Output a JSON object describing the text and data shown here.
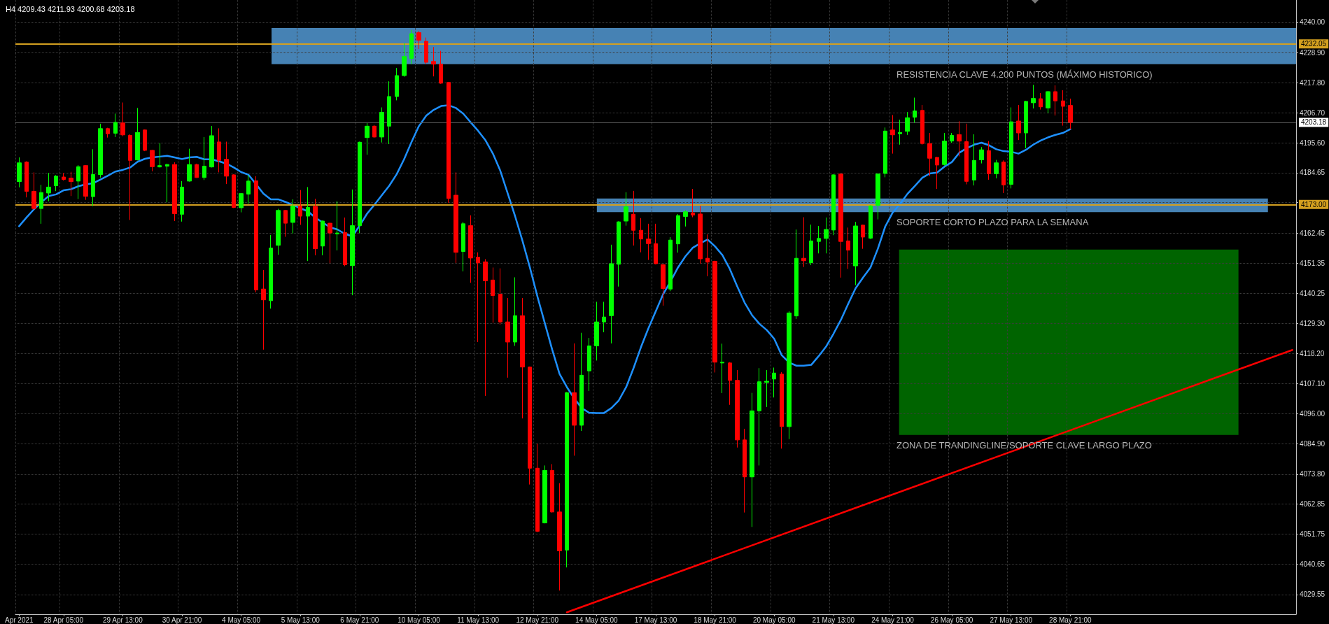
{
  "chart_data": {
    "type": "candlestick",
    "title": "H4 4209.43 4211.93 4200.68 4203.18",
    "categories": [
      "Apr 2021",
      null,
      null,
      null,
      null,
      null,
      "28 Apr 05:00",
      null,
      null,
      null,
      null,
      null,
      null,
      null,
      "29 Apr 13:00",
      null,
      null,
      null,
      null,
      null,
      null,
      null,
      "30 Apr 21:00",
      null,
      null,
      null,
      null,
      null,
      null,
      null,
      "4 May 05:00",
      null,
      null,
      null,
      null,
      null,
      null,
      null,
      "5 May 13:00",
      null,
      null,
      null,
      null,
      null,
      null,
      null,
      "6 May 21:00",
      null,
      null,
      null,
      null,
      null,
      null,
      null,
      "10 May 05:00",
      null,
      null,
      null,
      null,
      null,
      null,
      null,
      "11 May 13:00",
      null,
      null,
      null,
      null,
      null,
      null,
      null,
      "12 May 21:00",
      null,
      null,
      null,
      null,
      null,
      null,
      null,
      "14 May 05:00",
      null,
      null,
      null,
      null,
      null,
      null,
      null,
      "17 May 13:00",
      null,
      null,
      null,
      null,
      null,
      null,
      null,
      "18 May 21:00",
      null,
      null,
      null,
      null,
      null,
      null,
      null,
      "20 May 05:00",
      null,
      null,
      null,
      null,
      null,
      null,
      null,
      "21 May 13:00",
      null,
      null,
      null,
      null,
      null,
      null,
      null,
      "24 May 21:00",
      null,
      null,
      null,
      null,
      null,
      null,
      null,
      "26 May 05:00",
      null,
      null,
      null,
      null,
      null,
      null,
      null,
      "27 May 13:00",
      null,
      null,
      null,
      null,
      null,
      null,
      null,
      "28 May 21:00",
      null,
      null,
      null,
      null,
      null,
      null,
      null,
      null,
      null,
      null,
      null,
      null,
      null,
      null,
      null,
      null,
      null,
      null,
      null,
      null,
      null,
      null,
      null,
      null,
      null,
      null,
      null,
      null,
      null,
      null
    ],
    "ohlc": [
      [
        4181.4,
        4190.3,
        4179.3,
        4188.3
      ],
      [
        4188.6,
        4188.9,
        4175.6,
        4177.8
      ],
      [
        4177.8,
        4184.8,
        4171.0,
        4171.5
      ],
      [
        4171.5,
        4180.2,
        4165.9,
        4177.4
      ],
      [
        4177.2,
        4184.6,
        4174.2,
        4179.4
      ],
      [
        4179.9,
        4183.8,
        4177.9,
        4183.4
      ],
      [
        4183.1,
        4184.6,
        4181.8,
        4182.2
      ],
      [
        4182.7,
        4185.0,
        4176.1,
        4181.4
      ],
      [
        4181.6,
        4187.5,
        4175.0,
        4186.9
      ],
      [
        4187.3,
        4187.5,
        4174.7,
        4176.0
      ],
      [
        4175.9,
        4193.3,
        4172.4,
        4184.0
      ],
      [
        4184.0,
        4202.7,
        4182.9,
        4200.9
      ],
      [
        4200.9,
        4201.2,
        4197.6,
        4199.0
      ],
      [
        4199.2,
        4206.4,
        4197.8,
        4203.2
      ],
      [
        4203.0,
        4210.5,
        4198.1,
        4198.6
      ],
      [
        4198.4,
        4198.8,
        4167.3,
        4189.2
      ],
      [
        4189.4,
        4208.5,
        4189.2,
        4199.5
      ],
      [
        4200.4,
        4200.6,
        4192.6,
        4192.9
      ],
      [
        4192.9,
        4193.1,
        4185.2,
        4186.9
      ],
      [
        4186.8,
        4195.6,
        4186.6,
        4187.3
      ],
      [
        4187.1,
        4188.0,
        4173.8,
        4187.7
      ],
      [
        4187.7,
        4188.5,
        4166.9,
        4169.6
      ],
      [
        4169.4,
        4181.6,
        4166.7,
        4179.4
      ],
      [
        4181.6,
        4193.5,
        4181.4,
        4187.7
      ],
      [
        4187.7,
        4188.0,
        4182.8,
        4182.9
      ],
      [
        4182.9,
        4197.8,
        4182.0,
        4187.1
      ],
      [
        4186.8,
        4201.9,
        4186.6,
        4198.3
      ],
      [
        4196.0,
        4201.0,
        4184.8,
        4189.2
      ],
      [
        4189.6,
        4196.1,
        4180.5,
        4183.4
      ],
      [
        4183.9,
        4184.1,
        4171.7,
        4171.9
      ],
      [
        4171.8,
        4177.2,
        4170.1,
        4177.0
      ],
      [
        4176.8,
        4183.9,
        4173.3,
        4181.6
      ],
      [
        4181.7,
        4183.4,
        4140.7,
        4141.6
      ],
      [
        4141.9,
        4148.9,
        4119.6,
        4137.9
      ],
      [
        4137.6,
        4161.8,
        4134.7,
        4157.0
      ],
      [
        4158.0,
        4171.4,
        4154.5,
        4170.8
      ],
      [
        4170.8,
        4171.0,
        4161.1,
        4166.1
      ],
      [
        4166.4,
        4174.9,
        4162.3,
        4172.4
      ],
      [
        4172.4,
        4178.3,
        4165.5,
        4168.7
      ],
      [
        4168.7,
        4179.4,
        4152.2,
        4171.9
      ],
      [
        4172.3,
        4175.1,
        4154.3,
        4156.7
      ],
      [
        4157.7,
        4167.1,
        4154.3,
        4166.9
      ],
      [
        4166.1,
        4166.3,
        4151.4,
        4162.5
      ],
      [
        4162.2,
        4174.2,
        4156.1,
        4162.5
      ],
      [
        4162.7,
        4168.2,
        4150.3,
        4150.8
      ],
      [
        4150.5,
        4178.5,
        4139.6,
        4165.2
      ],
      [
        4165.2,
        4196.1,
        4162.4,
        4195.9
      ],
      [
        4197.6,
        4202.9,
        4191.3,
        4201.8
      ],
      [
        4201.8,
        4202.2,
        4197.6,
        4197.8
      ],
      [
        4197.8,
        4208.7,
        4195.8,
        4206.9
      ],
      [
        4201.8,
        4218.3,
        4195.2,
        4212.7
      ],
      [
        4212.7,
        4223.2,
        4211.3,
        4220.4
      ],
      [
        4220.4,
        4232.3,
        4220.0,
        4227.4
      ],
      [
        4226.7,
        4237.2,
        4224.6,
        4235.8
      ],
      [
        4236.2,
        4236.8,
        4230.2,
        4233.4
      ],
      [
        4233.0,
        4234.4,
        4224.6,
        4225.3
      ],
      [
        4225.6,
        4230.9,
        4220.1,
        4224.6
      ],
      [
        4224.6,
        4229.5,
        4217.4,
        4217.6
      ],
      [
        4217.9,
        4218.1,
        4173.6,
        4175.2
      ],
      [
        4176.4,
        4184.8,
        4151.5,
        4155.4
      ],
      [
        4155.7,
        4166.6,
        4148.4,
        4165.9
      ],
      [
        4165.2,
        4169.0,
        4144.2,
        4153.3
      ],
      [
        4153.6,
        4155.4,
        4122.4,
        4151.5
      ],
      [
        4151.9,
        4152.9,
        4102.6,
        4144.9
      ],
      [
        4145.2,
        4149.8,
        4129.5,
        4139.5
      ],
      [
        4140.0,
        4149.5,
        4128.8,
        4129.8
      ],
      [
        4129.8,
        4138.6,
        4109.3,
        4122.4
      ],
      [
        4122.4,
        4146.2,
        4121.0,
        4132.1
      ],
      [
        4132.1,
        4138.6,
        4094.3,
        4113.2
      ],
      [
        4113.2,
        4113.4,
        4070.0,
        4076.0
      ],
      [
        4076.0,
        4085.0,
        4052.5,
        4052.8
      ],
      [
        4055.9,
        4077.0,
        4055.7,
        4075.2
      ],
      [
        4075.2,
        4077.5,
        4059.7,
        4059.9
      ],
      [
        4059.9,
        4070.5,
        4031.0,
        4045.6
      ],
      [
        4045.9,
        4104.0,
        4039.5,
        4103.8
      ],
      [
        4103.8,
        4121.9,
        4080.6,
        4091.8
      ],
      [
        4091.8,
        4125.8,
        4089.7,
        4110.2
      ],
      [
        4111.8,
        4123.9,
        4104.4,
        4121.0
      ],
      [
        4121.0,
        4137.2,
        4115.6,
        4129.8
      ],
      [
        4129.8,
        4137.2,
        4126.0,
        4131.6
      ],
      [
        4132.1,
        4158.2,
        4121.9,
        4151.2
      ],
      [
        4151.0,
        4166.8,
        4142.8,
        4166.6
      ],
      [
        4166.9,
        4177.5,
        4165.2,
        4172.2
      ],
      [
        4169.4,
        4178.0,
        4157.9,
        4163.5
      ],
      [
        4163.5,
        4168.0,
        4155.4,
        4160.3
      ],
      [
        4160.3,
        4165.9,
        4152.6,
        4158.6
      ],
      [
        4158.6,
        4165.9,
        4151.0,
        4151.2
      ],
      [
        4150.9,
        4151.1,
        4135.8,
        4142.1
      ],
      [
        4141.9,
        4161.0,
        4141.1,
        4159.9
      ],
      [
        4158.5,
        4169.5,
        4155.3,
        4168.9
      ],
      [
        4168.6,
        4170.9,
        4164.9,
        4170.3
      ],
      [
        4169.9,
        4178.7,
        4168.3,
        4169.1
      ],
      [
        4169.5,
        4172.5,
        4151.2,
        4153.0
      ],
      [
        4153.2,
        4162.0,
        4146.6,
        4151.8
      ],
      [
        4152.1,
        4152.3,
        4111.2,
        4115.0
      ],
      [
        4114.7,
        4121.8,
        4103.6,
        4115.0
      ],
      [
        4114.7,
        4115.0,
        4099.3,
        4108.3
      ],
      [
        4108.3,
        4112.1,
        4083.6,
        4086.4
      ],
      [
        4086.4,
        4090.5,
        4059.7,
        4072.8
      ],
      [
        4072.8,
        4103.7,
        4054.4,
        4097.1
      ],
      [
        4097.1,
        4112.8,
        4077.0,
        4107.8
      ],
      [
        4107.6,
        4112.1,
        4098.5,
        4108.0
      ],
      [
        4108.8,
        4113.0,
        4102.0,
        4111.0
      ],
      [
        4110.6,
        4111.3,
        4083.2,
        4091.3
      ],
      [
        4091.3,
        4133.7,
        4086.7,
        4133.1
      ],
      [
        4132.0,
        4163.8,
        4130.9,
        4153.2
      ],
      [
        4153.2,
        4168.3,
        4150.0,
        4152.3
      ],
      [
        4151.6,
        4165.6,
        4150.7,
        4159.6
      ],
      [
        4159.4,
        4165.1,
        4155.0,
        4160.5
      ],
      [
        4160.5,
        4168.2,
        4155.0,
        4163.8
      ],
      [
        4163.6,
        4184.1,
        4161.7,
        4183.9
      ],
      [
        4184.2,
        4184.4,
        4146.1,
        4159.4
      ],
      [
        4159.6,
        4164.5,
        4149.3,
        4156.2
      ],
      [
        4150.4,
        4166.6,
        4143.3,
        4165.1
      ],
      [
        4165.4,
        4165.6,
        4156.7,
        4161.0
      ],
      [
        4160.6,
        4172.7,
        4160.3,
        4172.5
      ],
      [
        4172.7,
        4184.4,
        4167.5,
        4184.2
      ],
      [
        4184.4,
        4201.3,
        4183.0,
        4200.0
      ],
      [
        4200.4,
        4205.9,
        4191.7,
        4198.6
      ],
      [
        4199.0,
        4204.2,
        4195.0,
        4199.5
      ],
      [
        4199.9,
        4207.0,
        4198.6,
        4204.9
      ],
      [
        4205.1,
        4212.3,
        4203.1,
        4207.4
      ],
      [
        4207.6,
        4209.6,
        4195.0,
        4195.4
      ],
      [
        4195.4,
        4199.3,
        4183.4,
        4190.0
      ],
      [
        4190.3,
        4190.5,
        4178.7,
        4187.5
      ],
      [
        4187.7,
        4199.3,
        4187.3,
        4196.3
      ],
      [
        4196.3,
        4199.3,
        4195.7,
        4198.4
      ],
      [
        4198.7,
        4203.6,
        4190.7,
        4196.3
      ],
      [
        4196.1,
        4202.7,
        4180.4,
        4181.5
      ],
      [
        4182.0,
        4198.8,
        4180.0,
        4189.2
      ],
      [
        4189.4,
        4194.1,
        4188.1,
        4193.1
      ],
      [
        4192.8,
        4196.3,
        4182.1,
        4184.3
      ],
      [
        4184.3,
        4189.4,
        4182.6,
        4188.3
      ],
      [
        4188.6,
        4189.2,
        4177.2,
        4180.2
      ],
      [
        4180.4,
        4208.7,
        4178.9,
        4203.4
      ],
      [
        4203.7,
        4209.6,
        4196.7,
        4199.3
      ],
      [
        4199.3,
        4211.1,
        4193.7,
        4210.9
      ],
      [
        4210.4,
        4217.0,
        4208.3,
        4212.0
      ],
      [
        4211.9,
        4214.0,
        4207.9,
        4208.9
      ],
      [
        4208.5,
        4214.7,
        4206.6,
        4214.5
      ],
      [
        4214.5,
        4216.8,
        4205.7,
        4211.1
      ],
      [
        4211.1,
        4215.0,
        4202.0,
        4209.1
      ],
      [
        4209.43,
        4211.93,
        4200.68,
        4203.18
      ],
      null,
      null,
      null,
      null,
      null,
      null,
      null,
      null,
      null,
      null,
      null,
      null,
      null,
      null,
      null,
      null,
      null,
      null,
      null,
      null,
      null,
      null,
      null,
      null,
      null,
      null,
      null,
      null,
      null,
      null
    ],
    "colors": [
      "#00ff00",
      "#ff0000",
      "#ff0000",
      "#00ff00",
      "#00ff00",
      "#00ff00",
      "#ff0000",
      "#ff0000",
      "#00ff00",
      "#ff0000",
      "#00ff00",
      "#00ff00",
      "#ff0000",
      "#00ff00",
      "#ff0000",
      "#ff0000",
      "#00ff00",
      "#ff0000",
      "#ff0000",
      "#00ff00",
      "#00ff00",
      "#ff0000",
      "#00ff00",
      "#00ff00",
      "#ff0000",
      "#00ff00",
      "#00ff00",
      "#ff0000",
      "#ff0000",
      "#ff0000",
      "#00ff00",
      "#00ff00",
      "#ff0000",
      "#ff0000",
      "#00ff00",
      "#00ff00",
      "#ff0000",
      "#00ff00",
      "#ff0000",
      "#00ff00",
      "#ff0000",
      "#00ff00",
      "#ff0000",
      "#00ff00",
      "#ff0000",
      "#00ff00",
      "#00ff00",
      "#00ff00",
      "#ff0000",
      "#00ff00",
      "#00ff00",
      "#00ff00",
      "#00ff00",
      "#00ff00",
      "#ff0000",
      "#ff0000",
      "#ff0000",
      "#ff0000",
      "#ff0000",
      "#ff0000",
      "#00ff00",
      "#ff0000",
      "#ff0000",
      "#ff0000",
      "#ff0000",
      "#ff0000",
      "#ff0000",
      "#00ff00",
      "#ff0000",
      "#ff0000",
      "#ff0000",
      "#00ff00",
      "#ff0000",
      "#ff0000",
      "#00ff00",
      "#ff0000",
      "#00ff00",
      "#00ff00",
      "#00ff00",
      "#00ff00",
      "#00ff00",
      "#00ff00",
      "#00ff00",
      "#ff0000",
      "#ff0000",
      "#ff0000",
      "#ff0000",
      "#ff0000",
      "#00ff00",
      "#00ff00",
      "#00ff00",
      "#ff0000",
      "#ff0000",
      "#ff0000",
      "#ff0000",
      "#00ff00",
      "#ff0000",
      "#ff0000",
      "#ff0000",
      "#00ff00",
      "#00ff00",
      "#00ff00",
      "#00ff00",
      "#ff0000",
      "#00ff00",
      "#00ff00",
      "#ff0000",
      "#00ff00",
      "#00ff00",
      "#00ff00",
      "#00ff00",
      "#ff0000",
      "#ff0000",
      "#00ff00",
      "#ff0000",
      "#00ff00",
      "#00ff00",
      "#00ff00",
      "#ff0000",
      "#00ff00",
      "#00ff00",
      "#00ff00",
      "#ff0000",
      "#ff0000",
      "#ff0000",
      "#00ff00",
      "#00ff00",
      "#ff0000",
      "#ff0000",
      "#00ff00",
      "#00ff00",
      "#ff0000",
      "#00ff00",
      "#ff0000",
      "#00ff00",
      "#ff0000",
      "#00ff00",
      "#00ff00",
      "#ff0000",
      "#00ff00",
      "#ff0000",
      "#ff0000",
      "#ff0000",
      null,
      null,
      null,
      null,
      null,
      null,
      null,
      null,
      null,
      null,
      null,
      null,
      null,
      null,
      null,
      null,
      null,
      null,
      null,
      null,
      null,
      null,
      null,
      null,
      null,
      null,
      null,
      null,
      null,
      null
    ],
    "series": [
      {
        "type": "line",
        "color": "#1e90ff",
        "values": [
          4165.0,
          4168.2,
          4171.2,
          4173.8,
          4176.1,
          4176.7,
          4178.2,
          4178.6,
          4179.7,
          4180.4,
          4180.8,
          4182.2,
          4183.6,
          4185.1,
          4185.7,
          4186.6,
          4188.7,
          4189.8,
          4190.3,
          4190.6,
          4190.9,
          4190.3,
          4189.7,
          4190.3,
          4190.5,
          4189.6,
          4189.6,
          4188.9,
          4188.0,
          4186.6,
          4184.9,
          4183.9,
          4180.5,
          4177.0,
          4174.9,
          4174.9,
          4173.9,
          4172.8,
          4171.6,
          4170.5,
          4168.2,
          4166.4,
          4164.6,
          4163.8,
          4162.2,
          4161.3,
          4165.2,
          4169.6,
          4172.9,
          4176.4,
          4179.9,
          4184.1,
          4189.6,
          4195.9,
          4201.8,
          4205.7,
          4207.8,
          4209.2,
          4209.5,
          4208.5,
          4206.4,
          4203.2,
          4200.1,
          4196.6,
          4191.7,
          4185.4,
          4177.1,
          4168.7,
          4159.6,
          4149.8,
          4139.3,
          4129.5,
          4119.7,
          4110.7,
          4105.8,
          4101.6,
          4098.1,
          4096.4,
          4096.3,
          4096.3,
          4098.1,
          4100.9,
          4105.8,
          4112.8,
          4120.5,
          4127.4,
          4133.7,
          4140.0,
          4144.7,
          4149.8,
          4153.9,
          4157.1,
          4158.7,
          4160.1,
          4157.6,
          4154.4,
          4149.3,
          4142.9,
          4136.9,
          4132.3,
          4129.1,
          4126.8,
          4123.6,
          4117.6,
          4114.9,
          4113.7,
          4113.7,
          4114.0,
          4117.2,
          4120.7,
          4125.4,
          4130.5,
          4136.5,
          4142.2,
          4146.1,
          4149.8,
          4156.7,
          4164.9,
          4170.0,
          4173.2,
          4176.9,
          4179.8,
          4182.8,
          4184.4,
          4184.7,
          4186.9,
          4188.6,
          4192.0,
          4193.7,
          4195.0,
          4195.7,
          4194.8,
          4193.3,
          4192.6,
          4192.4,
          4191.7,
          4193.1,
          4195.0,
          4196.5,
          4197.7,
          4198.6,
          4199.3,
          4200.7,
          null,
          null,
          null,
          null,
          null,
          null,
          null,
          null,
          null,
          null,
          null,
          null,
          null,
          null,
          null,
          null,
          null,
          null,
          null,
          null,
          null,
          null,
          null,
          null,
          null,
          null,
          null,
          null,
          null,
          null
        ]
      },
      {
        "type": "line",
        "color": "#ff0000",
        "values": [
          null,
          null,
          null,
          null,
          null,
          null,
          null,
          null,
          null,
          null,
          null,
          null,
          null,
          null,
          null,
          null,
          null,
          null,
          null,
          null,
          null,
          null,
          null,
          null,
          null,
          null,
          null,
          null,
          null,
          null,
          null,
          null,
          null,
          null,
          null,
          null,
          null,
          null,
          null,
          null,
          null,
          null,
          null,
          null,
          null,
          null,
          null,
          null,
          null,
          null,
          null,
          null,
          null,
          null,
          null,
          null,
          null,
          null,
          null,
          null,
          null,
          null,
          null,
          null,
          null,
          null,
          null,
          null,
          null,
          null,
          null,
          null,
          null,
          null,
          4023.0,
          null,
          null,
          null,
          null,
          null,
          null,
          null,
          null,
          null,
          null,
          null,
          null,
          null,
          null,
          null,
          null,
          null,
          null,
          null,
          null,
          null,
          null,
          null,
          null,
          null,
          null,
          null,
          null,
          null,
          null,
          null,
          null,
          null,
          null,
          null,
          null,
          null,
          null,
          null,
          null,
          null,
          null,
          null,
          null,
          null,
          null,
          null,
          null,
          null,
          null,
          null,
          null,
          null,
          null,
          null,
          null,
          null,
          null,
          null,
          null,
          null,
          null,
          null,
          null,
          null,
          null,
          null,
          null,
          null,
          null,
          null,
          null,
          null,
          null,
          null,
          null,
          null,
          null,
          null,
          null,
          null,
          null,
          null,
          null,
          null,
          null,
          null,
          null,
          null,
          null,
          null,
          null,
          null,
          null,
          null,
          null,
          null,
          4119.5
        ]
      }
    ],
    "ylim": [
      4022.3,
      4248.2
    ],
    "yticks": [
      {
        "value": 4240,
        "label": "4240.00"
      },
      {
        "value": 4228.9,
        "label": "4228.90"
      },
      {
        "value": 4217.8,
        "label": "4217.80"
      },
      {
        "value": 4206.7,
        "label": "4206.70"
      },
      {
        "value": 4195.6,
        "label": "4195.60"
      },
      4184.65,
      {
        "value": 4173.7,
        "label": null
      },
      4162.45,
      4151.35,
      4140.25,
      {
        "value": 4129.3,
        "label": "4129.30"
      },
      {
        "value": 4118.2,
        "label": "4118.20"
      },
      {
        "value": 4107.1,
        "label": "4107.10"
      },
      {
        "value": 4096,
        "label": "4096.00"
      },
      {
        "value": 4084.9,
        "label": "4084.90"
      },
      {
        "value": 4073.8,
        "label": "4073.80"
      },
      4062.85,
      4051.75,
      4040.65,
      4029.55
    ],
    "grid": true,
    "ref_lines": [
      {
        "axis": "y",
        "value": 4232.05,
        "label": "4232.05",
        "color": "#d4a020"
      },
      {
        "axis": "y",
        "value": 4173.0,
        "label": "4173.00",
        "color": "#d4a020"
      },
      {
        "axis": "y",
        "value": 4203.18,
        "label": "4203.18",
        "color": "#5a5a5a"
      }
    ],
    "bands": [
      {
        "axis": "y",
        "from": 4224.6,
        "to": 4237.9,
        "label": "RESISTENCIA CLAVE 4.200 PUNTOS (MÁXIMO HISTORICO)",
        "color": "#4682b4"
      },
      {
        "axis": "y",
        "from": 4170.2,
        "to": 4175.2,
        "label": "SOPORTE CORTO PLAZO PARA LA SEMANA",
        "color": "#4682b4"
      },
      {
        "axis": "y",
        "from": 4088.2,
        "to": 4156.4,
        "label": "ZONA DE TRANDINGLINE/SOPORTE CLAVE LARGO PLAZO",
        "color": "#006400"
      }
    ]
  }
}
